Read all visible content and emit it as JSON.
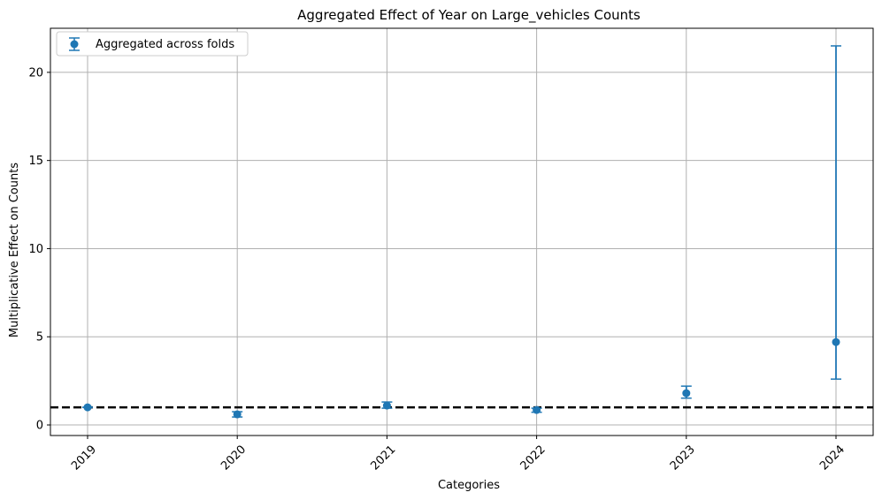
{
  "chart_data": {
    "type": "scatter",
    "title": "Aggregated Effect of Year on Large_vehicles Counts",
    "xlabel": "Categories",
    "ylabel": "Multiplicative Effect on Counts",
    "categories": [
      "2019",
      "2020",
      "2021",
      "2022",
      "2023",
      "2024"
    ],
    "series": [
      {
        "name": "Aggregated across folds",
        "values": [
          1.0,
          0.6,
          1.1,
          0.85,
          1.8,
          4.7
        ],
        "lower": [
          1.0,
          0.45,
          0.95,
          0.72,
          1.52,
          2.6
        ],
        "upper": [
          1.0,
          0.75,
          1.3,
          0.95,
          2.2,
          21.5
        ]
      }
    ],
    "reference_line": 1.0,
    "ylim": [
      -0.6,
      22.5
    ],
    "yticks": [
      0,
      5,
      10,
      15,
      20
    ],
    "grid": true,
    "legend_position": "top-left",
    "colors": {
      "series": "#1f77b4",
      "reference": "#000000",
      "grid": "#b0b0b0"
    }
  }
}
